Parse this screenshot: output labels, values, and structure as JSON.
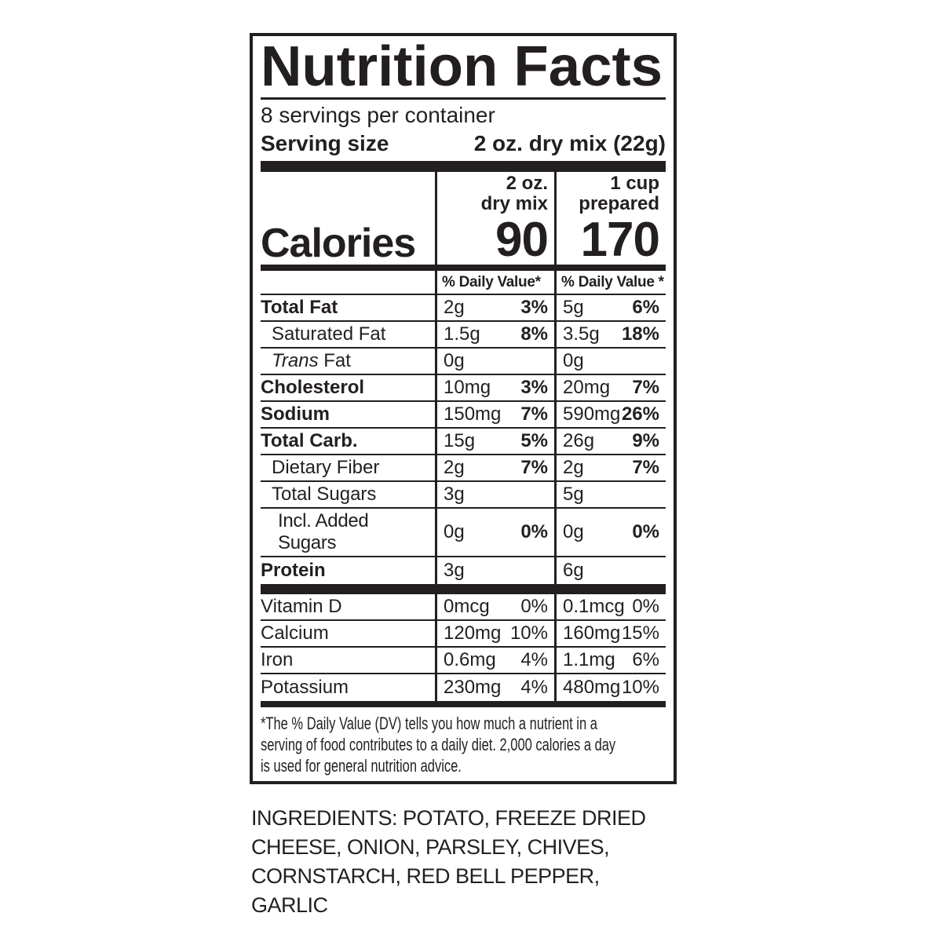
{
  "label": {
    "title": "Nutrition Facts",
    "servings_per_container": "8 servings per container",
    "serving_size": {
      "label": "Serving size",
      "value": "2 oz. dry mix (22g)"
    },
    "calories": {
      "label": "Calories",
      "columns": [
        {
          "header": [
            "2 oz.",
            "dry mix"
          ],
          "value": "90"
        },
        {
          "header": [
            "1 cup",
            "prepared"
          ],
          "value": "170"
        }
      ]
    },
    "daily_value_header": {
      "col1": "% Daily Value*",
      "col2": "% Daily Value *"
    },
    "nutrients": [
      {
        "name": "Total Fat",
        "dry": {
          "amount": "2g",
          "dv": "3%"
        },
        "prepared": {
          "amount": "5g",
          "dv": "6%"
        }
      },
      {
        "name": "Saturated Fat",
        "dry": {
          "amount": "1.5g",
          "dv": "8%"
        },
        "prepared": {
          "amount": "3.5g",
          "dv": "18%"
        }
      },
      {
        "name_italic": "Trans",
        "name": " Fat",
        "dry": {
          "amount": "0g",
          "dv": ""
        },
        "prepared": {
          "amount": "0g",
          "dv": ""
        }
      },
      {
        "name": "Cholesterol",
        "dry": {
          "amount": "10mg",
          "dv": "3%"
        },
        "prepared": {
          "amount": "20mg",
          "dv": "7%"
        }
      },
      {
        "name": "Sodium",
        "dry": {
          "amount": "150mg",
          "dv": "7%"
        },
        "prepared": {
          "amount": "590mg",
          "dv": "26%"
        }
      },
      {
        "name": "Total Carb.",
        "dry": {
          "amount": "15g",
          "dv": "5%"
        },
        "prepared": {
          "amount": "26g",
          "dv": "9%"
        }
      },
      {
        "name": "Dietary Fiber",
        "dry": {
          "amount": "2g",
          "dv": "7%"
        },
        "prepared": {
          "amount": "2g",
          "dv": "7%"
        }
      },
      {
        "name": "Total Sugars",
        "dry": {
          "amount": "3g",
          "dv": ""
        },
        "prepared": {
          "amount": "5g",
          "dv": ""
        }
      },
      {
        "name": "Incl. Added Sugars",
        "dry": {
          "amount": "0g",
          "dv": "0%"
        },
        "prepared": {
          "amount": "0g",
          "dv": "0%"
        }
      },
      {
        "name": "Protein",
        "dry": {
          "amount": "3g",
          "dv": ""
        },
        "prepared": {
          "amount": "6g",
          "dv": ""
        }
      }
    ],
    "vitamins": [
      {
        "name": "Vitamin D",
        "dry": {
          "amount": "0mcg",
          "dv": "0%"
        },
        "prepared": {
          "amount": "0.1mcg",
          "dv": "0%"
        }
      },
      {
        "name": "Calcium",
        "dry": {
          "amount": "120mg",
          "dv": "10%"
        },
        "prepared": {
          "amount": "160mg",
          "dv": "15%"
        }
      },
      {
        "name": "Iron",
        "dry": {
          "amount": "0.6mg",
          "dv": "4%"
        },
        "prepared": {
          "amount": "1.1mg",
          "dv": "6%"
        }
      },
      {
        "name": "Potassium",
        "dry": {
          "amount": "230mg",
          "dv": "4%"
        },
        "prepared": {
          "amount": "480mg",
          "dv": "10%"
        }
      }
    ],
    "footnote": "*The % Daily Value (DV) tells you how much a nutrient in a\nserving of food contributes to a daily diet. 2,000 calories a day\nis used for general nutrition advice."
  },
  "ingredients": "INGREDIENTS: POTATO, FREEZE DRIED\nCHEESE, ONION, PARSLEY, CHIVES,\nCORNSTARCH, RED BELL PEPPER,\nGARLIC"
}
